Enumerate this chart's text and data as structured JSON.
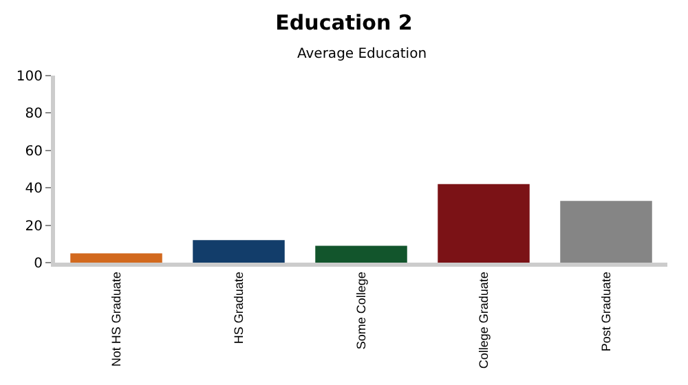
{
  "chart_data": {
    "type": "bar",
    "title": "Education 2",
    "subtitle": "Average Education",
    "categories": [
      "Not HS Graduate",
      "HS Graduate",
      "Some College",
      "College Graduate",
      "Post Graduate"
    ],
    "values": [
      5,
      12,
      9,
      42,
      33
    ],
    "colors": [
      "#d2691e",
      "#123d6a",
      "#12552c",
      "#7b1216",
      "#858585"
    ],
    "ylim": [
      0,
      100
    ],
    "yticks": [
      0,
      20,
      40,
      60,
      80,
      100
    ],
    "grid": false,
    "legend": false
  }
}
